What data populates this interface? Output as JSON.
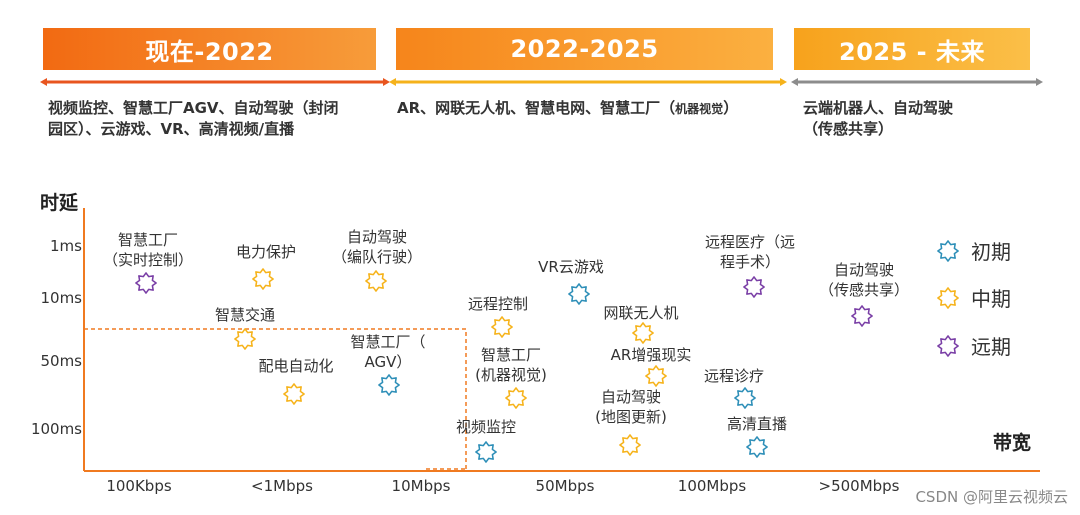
{
  "phases": [
    {
      "title": "现在-2022",
      "desc_lines": [
        "视频监控、智慧工厂AGV、自动驾驶（封闭",
        "园区）、云游戏、VR、高清视频/直播"
      ],
      "arrow_color": "#e8551f"
    },
    {
      "title": "2022-2025",
      "desc_main": "AR、网联无人机、智慧电网、智慧工厂（",
      "desc_small": "机器视觉",
      "desc_end": "）",
      "arrow_color": "#f5b21b"
    },
    {
      "title": "2025 - 未来",
      "desc_lines": [
        "云端机器人、自动驾驶",
        "（传感共享）"
      ],
      "arrow_color": "#8c8c8c"
    }
  ],
  "axes": {
    "y_title": "时延",
    "x_title": "带宽",
    "y_ticks": [
      "1ms",
      "10ms",
      "50ms",
      "100ms"
    ],
    "x_ticks": [
      "100Kbps",
      "<1Mbps",
      "10Mbps",
      "50Mbps",
      "100Mbps",
      ">500Mbps"
    ]
  },
  "legend": [
    {
      "label": "初期",
      "color": "#2e8fb8"
    },
    {
      "label": "中期",
      "color": "#f6b31b"
    },
    {
      "label": "远期",
      "color": "#7a3fa6"
    }
  ],
  "points": [
    {
      "lines": [
        "智慧工厂",
        "（实时控制）"
      ],
      "stage": "远期"
    },
    {
      "lines": [
        "电力保护"
      ],
      "stage": "中期"
    },
    {
      "lines": [
        "自动驾驶",
        "（编队行驶）"
      ],
      "stage": "中期"
    },
    {
      "lines": [
        "智慧交通"
      ],
      "stage": "中期"
    },
    {
      "lines": [
        "配电自动化"
      ],
      "stage": "中期"
    },
    {
      "lines": [
        "智慧工厂（",
        "AGV）"
      ],
      "stage": "初期"
    },
    {
      "lines": [
        "VR云游戏"
      ],
      "stage": "初期"
    },
    {
      "lines": [
        "远程控制"
      ],
      "stage": "中期"
    },
    {
      "lines": [
        "网联无人机"
      ],
      "stage": "中期"
    },
    {
      "lines": [
        "智慧工厂",
        "(机器视觉)"
      ],
      "stage": "中期"
    },
    {
      "lines": [
        "AR增强现实"
      ],
      "stage": "中期"
    },
    {
      "lines": [
        "视频监控"
      ],
      "stage": "初期"
    },
    {
      "lines": [
        "自动驾驶",
        "(地图更新)"
      ],
      "stage": "中期"
    },
    {
      "lines": [
        "远程医疗（远",
        "程手术）"
      ],
      "stage": "远期"
    },
    {
      "lines": [
        "远程诊疗"
      ],
      "stage": "初期"
    },
    {
      "lines": [
        "高清直播"
      ],
      "stage": "初期"
    },
    {
      "lines": [
        "自动驾驶",
        "（传感共享）"
      ],
      "stage": "远期"
    }
  ],
  "watermark": "CSDN @阿里云视频云"
}
